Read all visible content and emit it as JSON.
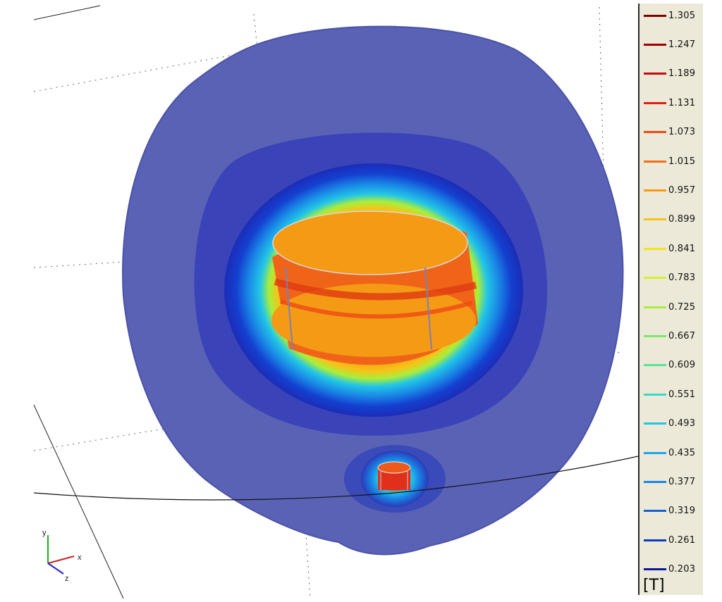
{
  "legend": {
    "unit": "[T]",
    "entries": [
      {
        "value": "1.305",
        "color": "#7a0000"
      },
      {
        "value": "1.247",
        "color": "#a00000"
      },
      {
        "value": "1.189",
        "color": "#c80a0a"
      },
      {
        "value": "1.131",
        "color": "#e01e14"
      },
      {
        "value": "1.073",
        "color": "#ee4a14"
      },
      {
        "value": "1.015",
        "color": "#f36e14"
      },
      {
        "value": "0.957",
        "color": "#f59a14"
      },
      {
        "value": "0.899",
        "color": "#f6c318"
      },
      {
        "value": "0.841",
        "color": "#f2e61c"
      },
      {
        "value": "0.783",
        "color": "#d6f02a"
      },
      {
        "value": "0.725",
        "color": "#a8ee3c"
      },
      {
        "value": "0.667",
        "color": "#7ae86a"
      },
      {
        "value": "0.609",
        "color": "#58e49a"
      },
      {
        "value": "0.551",
        "color": "#3ad8c8"
      },
      {
        "value": "0.493",
        "color": "#22c6e6"
      },
      {
        "value": "0.435",
        "color": "#1aa8ee"
      },
      {
        "value": "0.377",
        "color": "#1a86e6"
      },
      {
        "value": "0.319",
        "color": "#1460d6"
      },
      {
        "value": "0.261",
        "color": "#0c3cc0"
      },
      {
        "value": "0.203",
        "color": "#0818a0"
      }
    ]
  },
  "axes": {
    "x": "x",
    "y": "y",
    "z": "z"
  }
}
